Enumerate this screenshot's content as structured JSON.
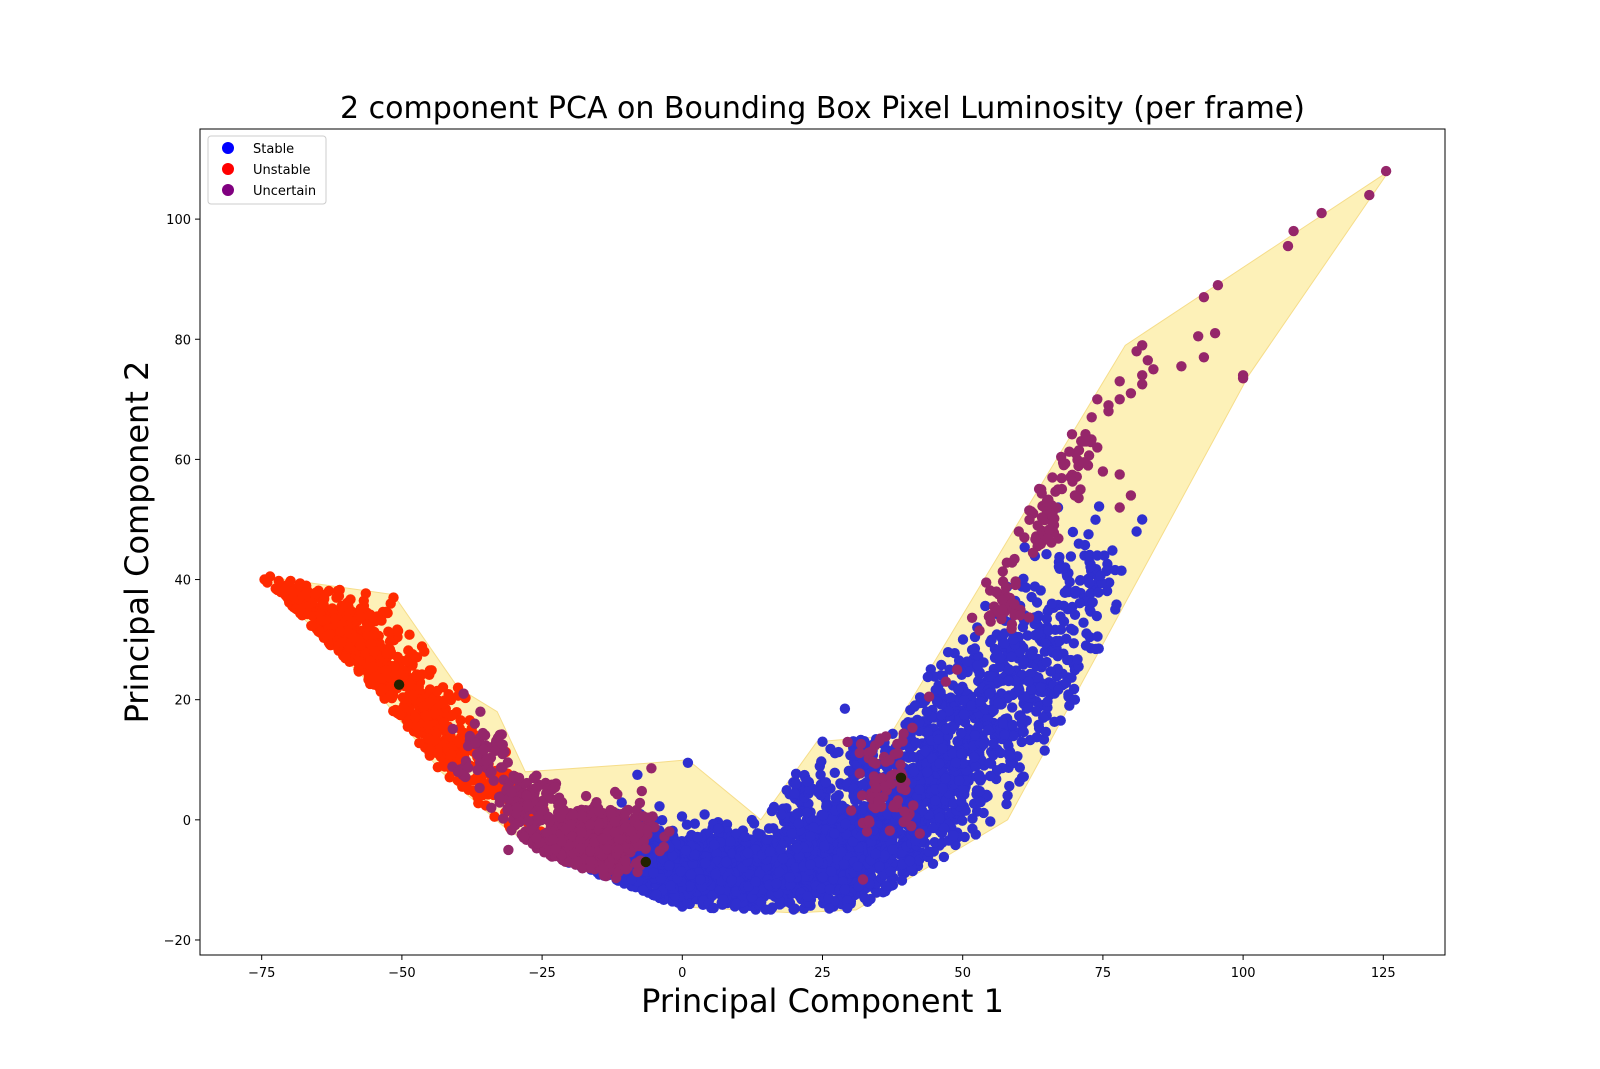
{
  "chart_data": {
    "type": "scatter",
    "title": "2 component PCA on Bounding Box Pixel Luminosity (per frame)",
    "xlabel": "Principal Component 1",
    "ylabel": "Principal Component 2",
    "xlim": [
      -86,
      136
    ],
    "ylim": [
      -22.5,
      115
    ],
    "xticks": [
      -75,
      -50,
      -25,
      0,
      25,
      50,
      75,
      100,
      125
    ],
    "yticks": [
      -20,
      0,
      20,
      40,
      60,
      80,
      100
    ],
    "xtick_labels": [
      "−75",
      "−50",
      "−25",
      "0",
      "25",
      "50",
      "75",
      "100",
      "125"
    ],
    "ytick_labels": [
      "−20",
      "0",
      "20",
      "40",
      "60",
      "80",
      "100"
    ],
    "grid": false,
    "legend_position": "top-left",
    "hull": {
      "color": "#fdf0b0",
      "polygon": [
        [
          -74.5,
          40.5
        ],
        [
          -51.5,
          37.5
        ],
        [
          -40,
          22
        ],
        [
          -33,
          18
        ],
        [
          -28,
          8
        ],
        [
          -5,
          9.5
        ],
        [
          1,
          10
        ],
        [
          14,
          0
        ],
        [
          24,
          13
        ],
        [
          37,
          14
        ],
        [
          79,
          79
        ],
        [
          126,
          108
        ],
        [
          101,
          74
        ],
        [
          58,
          0
        ],
        [
          31,
          -15
        ],
        [
          20,
          -15.5
        ],
        [
          0,
          -14.5
        ],
        [
          -25,
          -5.5
        ],
        [
          -32,
          -1
        ],
        [
          -43,
          8
        ],
        [
          -55,
          22
        ],
        [
          -67,
          33
        ]
      ]
    },
    "centroids": {
      "color": "#222200",
      "points": [
        [
          -50.5,
          22.5
        ],
        [
          -6.5,
          -7
        ],
        [
          39,
          7
        ]
      ]
    },
    "series": [
      {
        "name": "Stable",
        "color": "#2f2fcf",
        "legend_color": "#0000ff",
        "clusters": [
          {
            "cx": 8,
            "cy": -8.5,
            "sx": 12,
            "sy": 3,
            "n": 1700,
            "rot": 0
          },
          {
            "cx": -10,
            "cy": -5.5,
            "sx": 6,
            "sy": 3,
            "n": 280,
            "rot": 0
          },
          {
            "cx": 27,
            "cy": -6,
            "sx": 6,
            "sy": 4,
            "n": 320,
            "rot": 0
          },
          {
            "cx": 36,
            "cy": 0,
            "sx": 5,
            "sy": 6,
            "n": 320,
            "rot": 0
          },
          {
            "cx": 45,
            "cy": 9,
            "sx": 4,
            "sy": 7,
            "n": 420,
            "rot": 0
          },
          {
            "cx": 55,
            "cy": 18,
            "sx": 4,
            "sy": 7,
            "n": 260,
            "rot": 0
          },
          {
            "cx": 64,
            "cy": 26,
            "sx": 4,
            "sy": 7,
            "n": 160,
            "rot": 0
          },
          {
            "cx": 72,
            "cy": 38,
            "sx": 4,
            "sy": 6,
            "n": 80,
            "rot": 0
          },
          {
            "cx": 22,
            "cy": 2,
            "sx": 4,
            "sy": 4,
            "n": 90,
            "rot": 0
          },
          {
            "cx": 33,
            "cy": 10,
            "sx": 3,
            "sy": 3,
            "n": 40,
            "rot": 0
          }
        ],
        "explicit_points": [
          [
            -8,
            7.5
          ],
          [
            1,
            9.5
          ],
          [
            29,
            18.5
          ],
          [
            67,
            52
          ],
          [
            82,
            50
          ],
          [
            81,
            48
          ],
          [
            74,
            44
          ],
          [
            70,
            20
          ],
          [
            69,
            19
          ],
          [
            61,
            33
          ],
          [
            59,
            30
          ],
          [
            25,
            13
          ]
        ]
      },
      {
        "name": "Unstable",
        "color": "#ff2a00",
        "legend_color": "#ff0000",
        "clusters": [
          {
            "cx": -70,
            "cy": 36.5,
            "sx": 3,
            "sy": 1.5,
            "n": 120,
            "rot": 0
          },
          {
            "cx": -61,
            "cy": 30.5,
            "sx": 4,
            "sy": 3,
            "n": 260,
            "rot": 0
          },
          {
            "cx": -52,
            "cy": 24,
            "sx": 3,
            "sy": 3,
            "n": 150,
            "rot": 0
          },
          {
            "cx": -46,
            "cy": 17,
            "sx": 3,
            "sy": 2.5,
            "n": 120,
            "rot": 0
          },
          {
            "cx": -40,
            "cy": 11,
            "sx": 3,
            "sy": 2.5,
            "n": 90,
            "rot": 0
          },
          {
            "cx": -34,
            "cy": 5,
            "sx": 2.5,
            "sy": 2,
            "n": 60,
            "rot": 0
          },
          {
            "cx": -28,
            "cy": 1,
            "sx": 2,
            "sy": 1.5,
            "n": 25,
            "rot": 0
          }
        ],
        "explicit_points": [
          [
            -74.5,
            40
          ],
          [
            -74,
            39.5
          ],
          [
            -73.5,
            40.5
          ],
          [
            -72.5,
            38.5
          ],
          [
            -51.5,
            37
          ],
          [
            -52,
            36
          ],
          [
            -46,
            28
          ],
          [
            -40,
            22
          ],
          [
            -39,
            21
          ]
        ]
      },
      {
        "name": "Uncertain",
        "color": "#95266a",
        "legend_color": "#800080",
        "clusters": [
          {
            "cx": -18,
            "cy": -3.5,
            "sx": 5,
            "sy": 2.5,
            "n": 520,
            "rot": 0
          },
          {
            "cx": -28,
            "cy": 3.5,
            "sx": 3,
            "sy": 2,
            "n": 90,
            "rot": 0
          },
          {
            "cx": -36,
            "cy": 10,
            "sx": 3,
            "sy": 3,
            "n": 50,
            "rot": 0
          },
          {
            "cx": -10,
            "cy": -2,
            "sx": 3,
            "sy": 3,
            "n": 60,
            "rot": 0
          },
          {
            "cx": 36,
            "cy": 6,
            "sx": 3,
            "sy": 5,
            "n": 80,
            "rot": 0
          },
          {
            "cx": 57,
            "cy": 36,
            "sx": 2,
            "sy": 3,
            "n": 35,
            "rot": 0
          },
          {
            "cx": 64,
            "cy": 50,
            "sx": 2,
            "sy": 3,
            "n": 40,
            "rot": 0
          },
          {
            "cx": 70,
            "cy": 58,
            "sx": 2,
            "sy": 3,
            "n": 25,
            "rot": 0
          }
        ],
        "explicit_points": [
          [
            125.5,
            108
          ],
          [
            122.5,
            104
          ],
          [
            114,
            101
          ],
          [
            109,
            98
          ],
          [
            108,
            95.5
          ],
          [
            95.5,
            89
          ],
          [
            93,
            87
          ],
          [
            95,
            81
          ],
          [
            92,
            80.5
          ],
          [
            93,
            77
          ],
          [
            89,
            75.5
          ],
          [
            100,
            74
          ],
          [
            100,
            73.5
          ],
          [
            84,
            75
          ],
          [
            83,
            76.5
          ],
          [
            82,
            74
          ],
          [
            82,
            72.5
          ],
          [
            80,
            71
          ],
          [
            82,
            79
          ],
          [
            81,
            78
          ],
          [
            78,
            73
          ],
          [
            78,
            70
          ],
          [
            74,
            70
          ],
          [
            76,
            69
          ],
          [
            76,
            68
          ],
          [
            73,
            67
          ],
          [
            72,
            63
          ],
          [
            74,
            62
          ],
          [
            75,
            58
          ],
          [
            78,
            57.5
          ],
          [
            71,
            55
          ],
          [
            70,
            54
          ],
          [
            66,
            57
          ],
          [
            67,
            55
          ],
          [
            80,
            54
          ],
          [
            78,
            52
          ],
          [
            64,
            55
          ],
          [
            65,
            53
          ],
          [
            61,
            47
          ],
          [
            60,
            48
          ],
          [
            56,
            38
          ],
          [
            57,
            35
          ],
          [
            55,
            33
          ],
          [
            53,
            31.5
          ],
          [
            49,
            25
          ],
          [
            47,
            23
          ],
          [
            44,
            20.5
          ],
          [
            -39,
            21
          ],
          [
            -36,
            18
          ],
          [
            -37,
            16
          ],
          [
            -32,
            12.5
          ],
          [
            -34,
            8
          ],
          [
            -40,
            8
          ],
          [
            -31,
            -5
          ],
          [
            -26,
            -3
          ]
        ]
      }
    ]
  }
}
